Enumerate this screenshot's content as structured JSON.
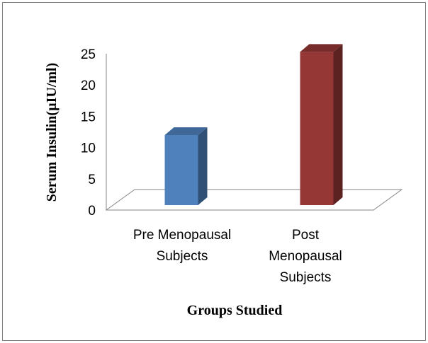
{
  "chart_data": {
    "type": "bar",
    "categories": [
      [
        "Pre Menopausal",
        "Subjects"
      ],
      [
        "Post",
        "Menopausal",
        "Subjects"
      ]
    ],
    "values": [
      11.2,
      24.5
    ],
    "colors": [
      "#4f81bd",
      "#953735"
    ],
    "yticks": [
      "0",
      "5",
      "10",
      "15",
      "20",
      "25"
    ],
    "ylim": [
      0,
      25
    ],
    "xlabel": "Groups Studied",
    "ylabel": "Serum Insulin(µIU/ml)",
    "grid": false,
    "legend": "none"
  }
}
